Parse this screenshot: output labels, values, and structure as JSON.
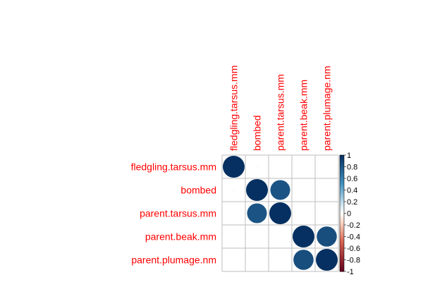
{
  "chart_data": {
    "type": "heatmap",
    "variables": [
      "fledgling.tarsus.mm",
      "bombed",
      "parent.tarsus.mm",
      "parent.beak.mm",
      "parent.plumage.nm"
    ],
    "matrix": [
      [
        1.0,
        0.02,
        0.0,
        0.0,
        0.0
      ],
      [
        0.02,
        1.0,
        0.82,
        0.0,
        0.0
      ],
      [
        0.0,
        0.82,
        1.0,
        0.0,
        0.0
      ],
      [
        0.0,
        0.0,
        0.0,
        1.0,
        0.85
      ],
      [
        0.0,
        0.0,
        0.0,
        0.85,
        1.0
      ]
    ],
    "color_range": [
      -1,
      1
    ],
    "colorbar_ticks": [
      {
        "value": 1,
        "label": "1"
      },
      {
        "value": 0.8,
        "label": "0.8"
      },
      {
        "value": 0.6,
        "label": "0.6"
      },
      {
        "value": 0.4,
        "label": "0.4"
      },
      {
        "value": 0.2,
        "label": "0.2"
      },
      {
        "value": 0,
        "label": "0"
      },
      {
        "value": -0.2,
        "label": "-0.2"
      },
      {
        "value": -0.4,
        "label": "-0.4"
      },
      {
        "value": -0.6,
        "label": "-0.6"
      },
      {
        "value": -0.8,
        "label": "-0.8"
      },
      {
        "value": -1,
        "label": "-1"
      }
    ],
    "colors": {
      "negative_end": "#67001f",
      "negative_mid": "#d6604d",
      "negative_light": "#fddbc7",
      "zero": "#ffffff",
      "positive_light": "#d1e5f0",
      "positive_mid": "#4393c3",
      "positive_end": "#053061",
      "grid": "#bebebe",
      "label": "#ff0000"
    },
    "grid": true,
    "legend_position": "right"
  }
}
